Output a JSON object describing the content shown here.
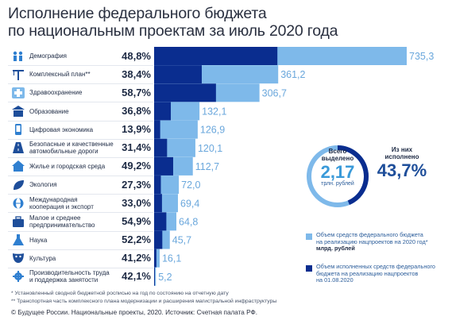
{
  "title": "Исполнение федерального бюджета\nпо национальным проектам за июль 2020 года",
  "colors": {
    "allocated": "#7eb9ea",
    "executed": "#0a2d8f",
    "text": "#1d2a44",
    "accent": "#1e4e9a"
  },
  "chart_data": {
    "type": "bar",
    "orientation": "horizontal",
    "categories": [
      "Демография",
      "Комплексный план**",
      "Здравоохранение",
      "Образование",
      "Цифровая экономика",
      "Безопасные и качественные автомобильные дороги",
      "Жилье и городская среда",
      "Экология",
      "Международная кооперация и экспорт",
      "Малое и среднее предпринимательство",
      "Наука",
      "Культура",
      "Производительность труда и поддержка занятости"
    ],
    "category_lines": [
      [
        "Демография"
      ],
      [
        "Комплексный план**"
      ],
      [
        "Здравоохранение"
      ],
      [
        "Образование"
      ],
      [
        "Цифровая экономика"
      ],
      [
        "Безопасные и качественные",
        "автомобильные дороги"
      ],
      [
        "Жилье и городская среда"
      ],
      [
        "Экология"
      ],
      [
        "Международная",
        "кооперация и экспорт"
      ],
      [
        "Малое и среднее",
        "предпринимательство"
      ],
      [
        "Наука"
      ],
      [
        "Культура"
      ],
      [
        "Производительность труда",
        "и поддержка занятости"
      ]
    ],
    "icons": [
      "family-icon",
      "crane-icon",
      "medical-cross-icon",
      "school-icon",
      "smartphone-icon",
      "road-icon",
      "house-icon",
      "leaf-icon",
      "globe-icon",
      "briefcase-icon",
      "flask-icon",
      "theater-mask-icon",
      "gear-icon"
    ],
    "series": [
      {
        "name": "Объем средств федерального бюджета на реализацию нацпроектов на 2020 год*, млрд. рублей",
        "values": [
          735.3,
          361.2,
          306.7,
          132.1,
          126.9,
          120.1,
          112.7,
          72.0,
          69.4,
          64.8,
          45.7,
          16.1,
          5.2
        ]
      },
      {
        "name": "Объем исполненных средств федерального бюджета на реализацию нацпроектов на 01.08.2020",
        "percent_executed": [
          48.8,
          38.4,
          58.7,
          36.8,
          13.9,
          31.4,
          49.2,
          27.3,
          33.0,
          54.9,
          52.2,
          41.2,
          42.1
        ]
      }
    ],
    "value_labels": [
      "735,3",
      "361,2",
      "306,7",
      "132,1",
      "126,9",
      "120,1",
      "112,7",
      "72,0",
      "69,4",
      "64,8",
      "45,7",
      "16,1",
      "5,2"
    ],
    "percent_labels": [
      "48,8%",
      "38,4%",
      "58,7%",
      "36,8%",
      "13,9%",
      "31,4%",
      "49,2%",
      "27,3%",
      "33,0%",
      "54,9%",
      "52,2%",
      "41,2%",
      "42,1%"
    ],
    "xlim": [
      0,
      735.3
    ]
  },
  "donut": {
    "total_label": "Всего\nвыделено",
    "total_value": "2,17",
    "total_unit": "трлн. рублей",
    "executed_label": "Из них\nисполнено",
    "executed_value": "43,7%",
    "executed_fraction": 0.437
  },
  "legend": [
    {
      "text": "Объем средств федерального бюджета\nна реализацию нацпроектов на 2020 год*",
      "bold": "млрд. рублей"
    },
    {
      "text": "Объем исполненных средств федерального\nбюджета на реализацию нацпроектов\nна 01.08.2020",
      "bold": ""
    }
  ],
  "footnotes": [
    "* Установленный сводной бюджетной росписью на год по состоянию на отчетную дату",
    "** Транспортная часть комплексного плана модернизации и расширения магистральной инфраструктуры"
  ],
  "source": "© Будущее России. Национальные проекты, 2020. Источник: Счетная палата РФ."
}
